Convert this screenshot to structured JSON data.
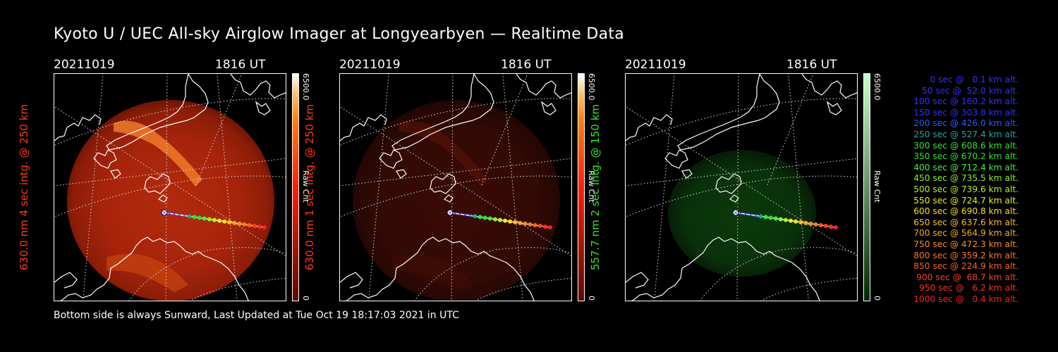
{
  "title": "Kyoto U / UEC All-sky Airglow Imager at Longyearbyen — Realtime Data",
  "footer": "Bottom side is always Sunward, Last Updated at Tue Oct 19 18:17:03 2021 in UTC",
  "panels": [
    {
      "date": "20211019",
      "time": "1816 UT",
      "ylabel": "630.0 nm 4 sec intg. @ 250 km",
      "ylabel_color": "#ff3a1a",
      "cbar_max": "6500.0",
      "cbar_min": "0",
      "cbar_label": "Raw Cnt",
      "cmap": "red",
      "brightness": "high"
    },
    {
      "date": "20211019",
      "time": "1816 UT",
      "ylabel": "630.0 nm 1 sec intg. @ 250 km",
      "ylabel_color": "#ff3a1a",
      "cbar_max": "6500.0",
      "cbar_min": "0",
      "cbar_label": "Raw Cnt",
      "cmap": "red",
      "brightness": "low"
    },
    {
      "date": "20211019",
      "time": "1816 UT",
      "ylabel": "557.7 nm 2 sec intg. @ 150 km",
      "ylabel_color": "#2ee82e",
      "cbar_max": "6500.0",
      "cbar_min": "0",
      "cbar_label": "Raw Cnt",
      "cmap": "green",
      "brightness": "low"
    }
  ],
  "legend": [
    {
      "text": "0 sec @   0.1 km alt.",
      "color": "#3030ff"
    },
    {
      "text": "50 sec @  52.0 km alt.",
      "color": "#3030ff"
    },
    {
      "text": "100 sec @ 160.2 km alt.",
      "color": "#3030ff"
    },
    {
      "text": "150 sec @ 303.8 km alt.",
      "color": "#3030ff"
    },
    {
      "text": "200 sec @ 426.0 km alt.",
      "color": "#2a5cff"
    },
    {
      "text": "250 sec @ 527.4 km alt.",
      "color": "#2aa0a0"
    },
    {
      "text": "300 sec @ 608.6 km alt.",
      "color": "#2ee82e"
    },
    {
      "text": "350 sec @ 670.2 km alt.",
      "color": "#2ee82e"
    },
    {
      "text": "400 sec @ 712.4 km alt.",
      "color": "#44f044"
    },
    {
      "text": "450 sec @ 735.5 km alt.",
      "color": "#8cf02a"
    },
    {
      "text": "500 sec @ 739.6 km alt.",
      "color": "#b4f028"
    },
    {
      "text": "550 sec @ 724.7 km alt.",
      "color": "#e8f020"
    },
    {
      "text": "600 sec @ 690.8 km alt.",
      "color": "#f8e020"
    },
    {
      "text": "650 sec @ 637.6 km alt.",
      "color": "#f8c020"
    },
    {
      "text": "700 sec @ 564.9 km alt.",
      "color": "#f8a820"
    },
    {
      "text": "750 sec @ 472.3 km alt.",
      "color": "#f89020"
    },
    {
      "text": "800 sec @ 359.2 km alt.",
      "color": "#f87820"
    },
    {
      "text": "850 sec @ 224.9 km alt.",
      "color": "#f86020"
    },
    {
      "text": "900 sec @  68.7 km alt.",
      "color": "#f84020"
    },
    {
      "text": "950 sec @   6.2 km alt.",
      "color": "#f83020"
    },
    {
      "text": "1000 sec @   0.4 km alt.",
      "color": "#f82020"
    }
  ],
  "chart_data": {
    "type": "image",
    "trajectory_altitude_km": [
      0.1,
      52.0,
      160.2,
      303.8,
      426.0,
      527.4,
      608.6,
      670.2,
      712.4,
      735.5,
      739.6,
      724.7,
      690.8,
      637.6,
      564.9,
      472.3,
      359.2,
      224.9,
      68.7,
      6.2,
      0.4
    ],
    "trajectory_time_sec": [
      0,
      50,
      100,
      150,
      200,
      250,
      300,
      350,
      400,
      450,
      500,
      550,
      600,
      650,
      700,
      750,
      800,
      850,
      900,
      950,
      1000
    ]
  }
}
